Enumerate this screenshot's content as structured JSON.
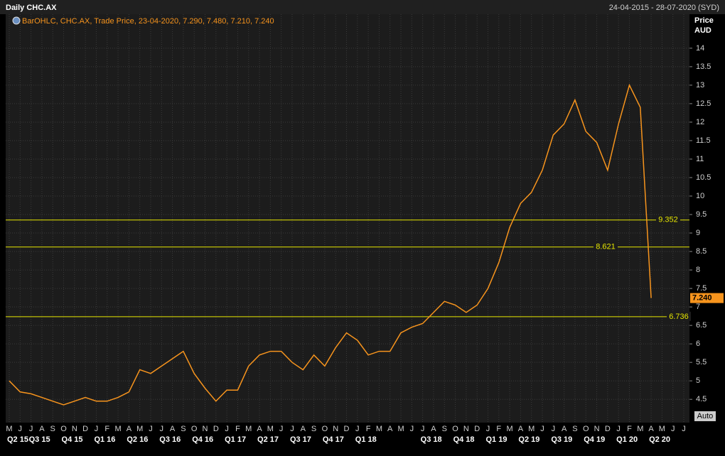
{
  "chart_data": {
    "type": "line",
    "title": "Daily CHC.AX",
    "date_range": "24-04-2015 - 28-07-2020 (SYD)",
    "axis_title": "Price",
    "axis_unit": "AUD",
    "scale_button": "Auto",
    "categories": [
      "M",
      "J",
      "J",
      "A",
      "S",
      "O",
      "N",
      "D",
      "J",
      "F",
      "M",
      "A",
      "M",
      "J",
      "J",
      "A",
      "S",
      "O",
      "N",
      "D",
      "J",
      "F",
      "M",
      "A",
      "M",
      "J",
      "J",
      "A",
      "S",
      "O",
      "N",
      "D",
      "J",
      "F",
      "M",
      "A",
      "M",
      "J",
      "J",
      "A",
      "S",
      "O",
      "N",
      "D",
      "J",
      "F",
      "M",
      "A",
      "M",
      "J",
      "J",
      "A",
      "S",
      "O",
      "N",
      "D",
      "J",
      "F",
      "M",
      "A",
      "M",
      "J",
      "J"
    ],
    "quarter_labels": [
      "Q2 15",
      null,
      "Q3 15",
      null,
      null,
      "Q4 15",
      null,
      null,
      "Q1 16",
      null,
      null,
      "Q2 16",
      null,
      null,
      "Q3 16",
      null,
      null,
      "Q4 16",
      null,
      null,
      "Q1 17",
      null,
      null,
      "Q2 17",
      null,
      null,
      "Q3 17",
      null,
      null,
      "Q4 17",
      null,
      null,
      "Q1 18",
      null,
      null,
      null,
      null,
      null,
      "Q3 18",
      null,
      null,
      "Q4 18",
      null,
      null,
      "Q1 19",
      null,
      null,
      "Q2 19",
      null,
      null,
      "Q3 19",
      null,
      null,
      "Q4 19",
      null,
      null,
      "Q1 20",
      null,
      null,
      "Q2 20",
      null,
      null,
      null
    ],
    "series": [
      {
        "name": "BarOHLC, CHC.AX, Trade Price, 23-04-2020, 7.290, 7.480, 7.210, 7.240",
        "color": "#f7941d",
        "values": [
          5.0,
          4.7,
          4.65,
          4.55,
          4.45,
          4.35,
          4.45,
          4.55,
          4.45,
          4.45,
          4.55,
          4.7,
          5.3,
          5.2,
          5.4,
          5.6,
          5.8,
          5.2,
          4.8,
          4.45,
          4.75,
          4.75,
          5.4,
          5.7,
          5.8,
          5.8,
          5.5,
          5.3,
          5.7,
          5.4,
          5.9,
          6.3,
          6.1,
          5.7,
          5.8,
          5.8,
          6.3,
          6.45,
          6.55,
          6.85,
          7.15,
          7.05,
          6.85,
          7.05,
          7.5,
          8.2,
          9.15,
          9.8,
          10.1,
          10.7,
          11.65,
          11.95,
          12.6,
          11.75,
          11.45,
          10.7,
          11.95,
          13.0,
          12.4,
          7.24,
          null,
          null,
          null
        ]
      }
    ],
    "hlines": [
      9.352,
      8.621,
      6.736
    ],
    "hline_color": "#e6e600",
    "last_price": {
      "value": 7.24,
      "label": "7.240"
    },
    "ylim": [
      3.87,
      14.92
    ],
    "yticks": [
      4.5,
      5,
      5.5,
      6,
      6.5,
      7,
      7.5,
      8,
      8.5,
      9,
      9.5,
      10,
      10.5,
      11,
      11.5,
      12,
      12.5,
      13,
      13.5,
      14
    ],
    "grid": true
  }
}
